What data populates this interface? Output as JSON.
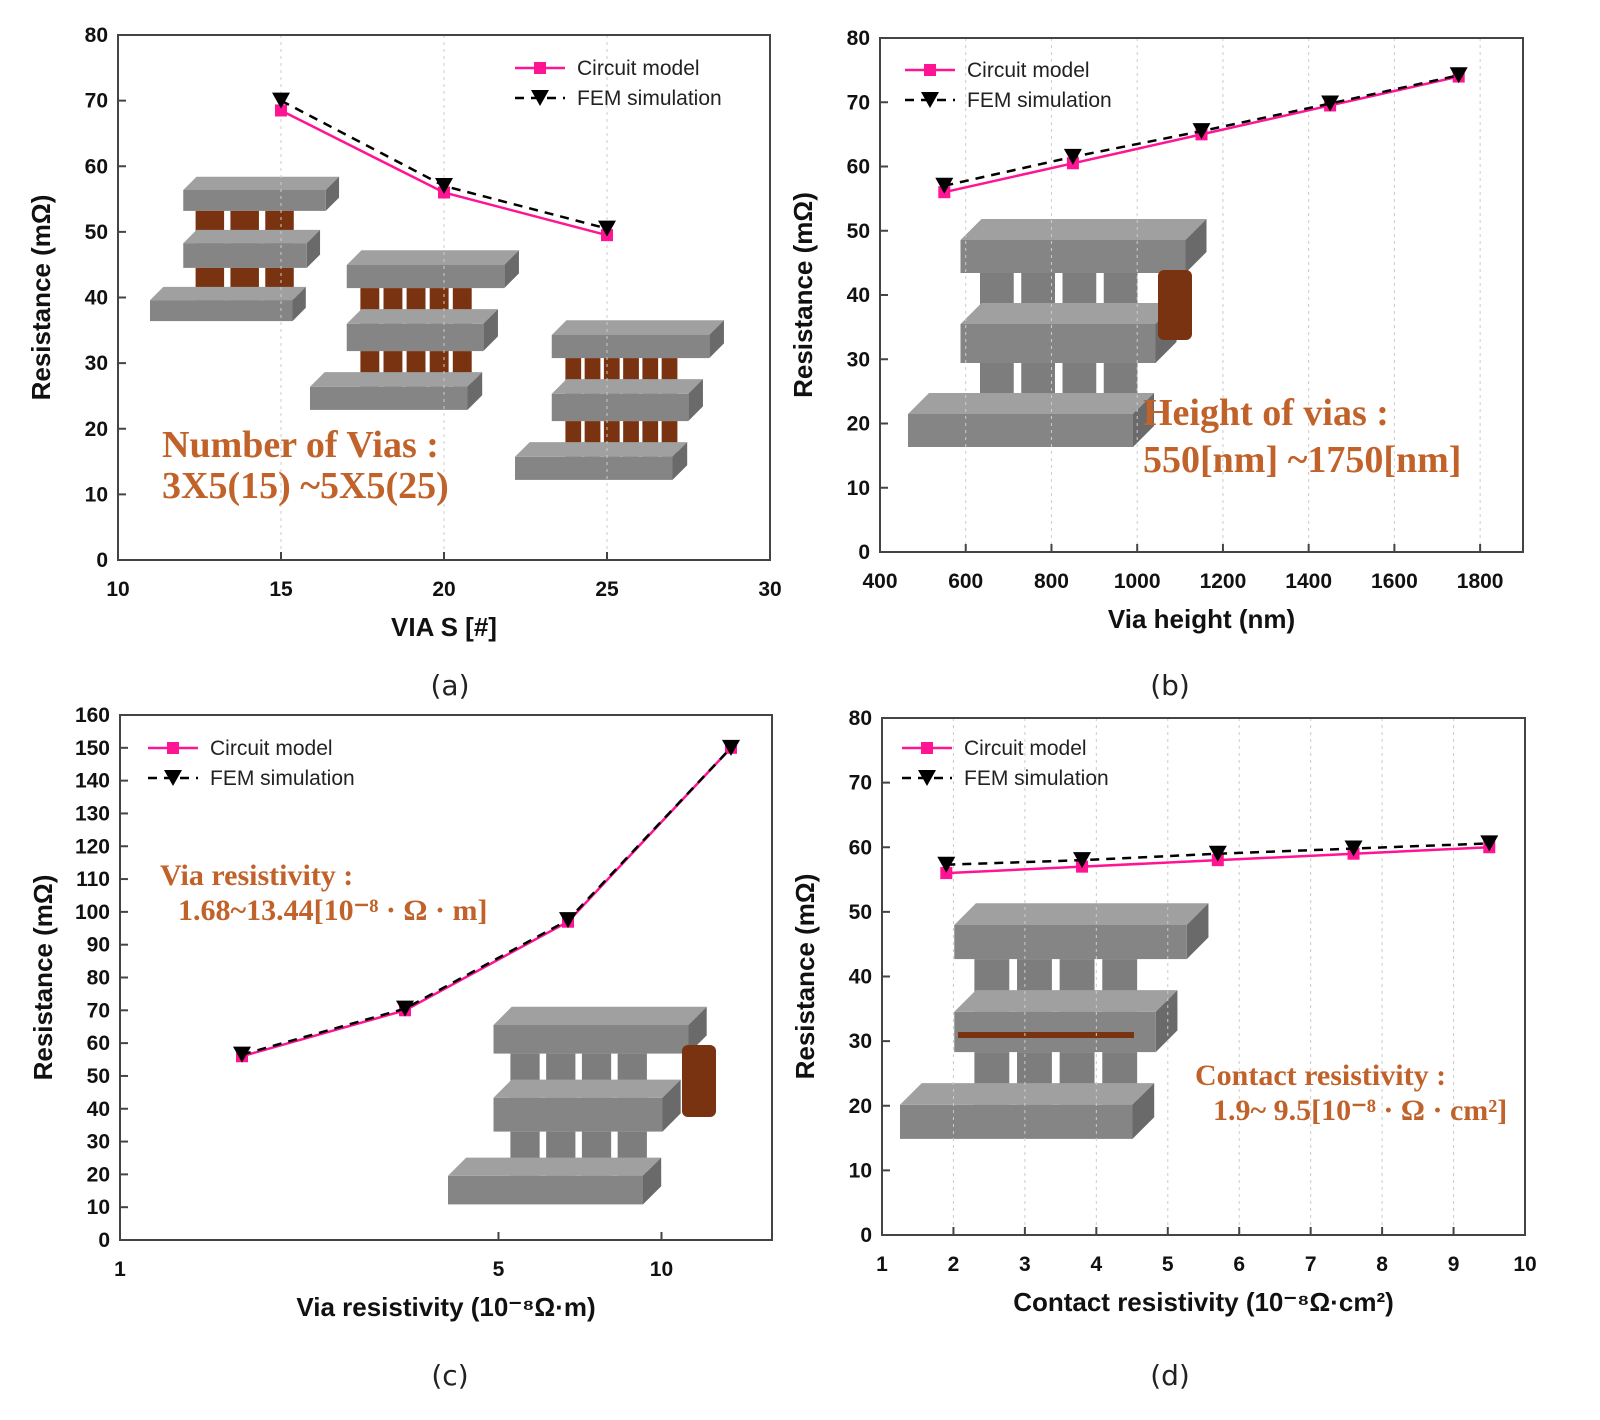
{
  "colors": {
    "circuit": "#ff1493",
    "fem": "#000000",
    "annotation": "#c0622a",
    "inset_metal": "#808080",
    "inset_via": "#7a3310"
  },
  "chart_data": [
    {
      "type": "line",
      "caption": "(a)",
      "xlabel": "VIA S [#]",
      "ylabel": "Resistance (mΩ)",
      "xlim": [
        10,
        30
      ],
      "ylim": [
        0,
        80
      ],
      "xscale": "linear",
      "xticks": [
        "10",
        "15",
        "20",
        "25",
        "30"
      ],
      "yticks": [
        "0",
        "10",
        "20",
        "30",
        "40",
        "50",
        "60",
        "70",
        "80"
      ],
      "grid": true,
      "legend_position": "top-right",
      "x": [
        15,
        20,
        25
      ],
      "series": [
        {
          "name": "Circuit model",
          "marker": "square",
          "values": [
            68.5,
            56,
            49.5
          ]
        },
        {
          "name": "FEM simulation",
          "marker": "triangle-down",
          "values": [
            70,
            57,
            50.5
          ]
        }
      ],
      "annotation": [
        "Number of Vias :",
        "3X5(15) ~5X5(25)"
      ]
    },
    {
      "type": "line",
      "caption": "(b)",
      "xlabel": "Via height (nm)",
      "ylabel": "Resistance (mΩ)",
      "xlim": [
        400,
        1900
      ],
      "ylim": [
        0,
        80
      ],
      "xscale": "linear",
      "xticks": [
        "400",
        "600",
        "800",
        "1000",
        "1200",
        "1400",
        "1600",
        "1800"
      ],
      "yticks": [
        "0",
        "10",
        "20",
        "30",
        "40",
        "50",
        "60",
        "70",
        "80"
      ],
      "grid": true,
      "legend_position": "top-left",
      "x": [
        550,
        850,
        1150,
        1450,
        1750
      ],
      "series": [
        {
          "name": "Circuit model",
          "marker": "square",
          "values": [
            56,
            60.5,
            65,
            69.5,
            74
          ]
        },
        {
          "name": "FEM simulation",
          "marker": "triangle-down",
          "values": [
            57,
            61.5,
            65.5,
            69.8,
            74.2
          ]
        }
      ],
      "annotation": [
        "Height of vias :",
        "550[nm] ~1750[nm]"
      ]
    },
    {
      "type": "line",
      "caption": "(c)",
      "xlabel": "Via resistivity (10⁻⁸Ω·m)",
      "ylabel": "Resistance (mΩ)",
      "xlim": [
        1,
        16
      ],
      "ylim": [
        0,
        160
      ],
      "xscale": "log",
      "xticks": [
        "1",
        "5",
        "10"
      ],
      "yticks": [
        "0",
        "10",
        "20",
        "30",
        "40",
        "50",
        "60",
        "70",
        "80",
        "90",
        "100",
        "110",
        "120",
        "130",
        "140",
        "150",
        "160"
      ],
      "grid": false,
      "legend_position": "top-left",
      "x": [
        1.68,
        3.36,
        6.72,
        13.44
      ],
      "series": [
        {
          "name": "Circuit model",
          "marker": "square",
          "values": [
            56,
            70,
            97,
            150
          ]
        },
        {
          "name": "FEM simulation",
          "marker": "triangle-down",
          "values": [
            56.5,
            70.5,
            97.5,
            150
          ]
        }
      ],
      "annotation": [
        "Via resistivity :",
        "1.68~13.44[10⁻⁸ · Ω · m]"
      ]
    },
    {
      "type": "line",
      "caption": "(d)",
      "xlabel": "Contact resistivity (10⁻⁸Ω·cm²)",
      "ylabel": "Resistance (mΩ)",
      "xlim": [
        1,
        10
      ],
      "ylim": [
        0,
        80
      ],
      "xscale": "linear",
      "xticks": [
        "1",
        "2",
        "3",
        "4",
        "5",
        "6",
        "7",
        "8",
        "9",
        "10"
      ],
      "yticks": [
        "0",
        "10",
        "20",
        "30",
        "40",
        "50",
        "60",
        "70",
        "80"
      ],
      "grid": true,
      "legend_position": "top-left",
      "x": [
        1.9,
        3.8,
        5.7,
        7.6,
        9.5
      ],
      "series": [
        {
          "name": "Circuit model",
          "marker": "square",
          "values": [
            56,
            57,
            58,
            59,
            60
          ]
        },
        {
          "name": "FEM simulation",
          "marker": "triangle-down",
          "values": [
            57.3,
            58,
            59,
            59.8,
            60.6
          ]
        }
      ],
      "annotation": [
        "Contact resistivity :",
        "1.9~ 9.5[10⁻⁸ · Ω · cm²]"
      ]
    }
  ]
}
